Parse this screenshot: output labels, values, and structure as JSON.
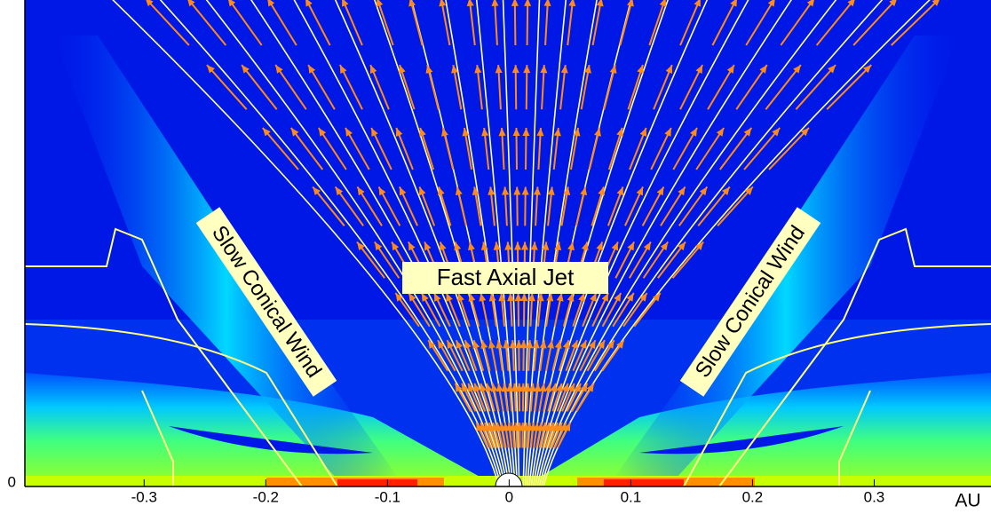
{
  "chart_data": {
    "type": "contour",
    "x_label": "AU",
    "xlim": [
      -0.398,
      0.396
    ],
    "xticks": [
      -0.3,
      -0.2,
      -0.1,
      0,
      0.1,
      0.2,
      0.3
    ],
    "ylim": [
      0,
      0.4
    ],
    "yticks": [
      0
    ],
    "annotations": [
      "Slow Conical Wind",
      "Fast Axial Jet",
      "Slow Conical Wind"
    ]
  }
}
